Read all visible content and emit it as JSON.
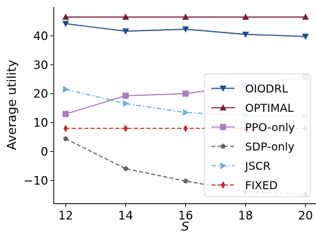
{
  "chart_data": {
    "type": "line",
    "title": "",
    "xlabel": "S",
    "ylabel": "Average utility",
    "x": [
      12,
      14,
      16,
      18,
      20
    ],
    "xlim": [
      11.6,
      20.35
    ],
    "ylim": [
      -18,
      50
    ],
    "xticks": [
      12,
      14,
      16,
      18,
      20
    ],
    "yticks": [
      -10,
      0,
      10,
      20,
      30,
      40
    ],
    "ytick_labels": [
      "−10",
      "0",
      "10",
      "20",
      "30",
      "40"
    ],
    "grid": false,
    "legend_position": "bottom-right",
    "series": [
      {
        "name": "OIODRL",
        "color": "#1f4e8c",
        "linestyle": "solid",
        "marker": "triangle-down",
        "values": [
          44.2,
          41.6,
          42.3,
          40.5,
          39.8
        ]
      },
      {
        "name": "OPTIMAL",
        "color": "#7b1a42",
        "linestyle": "solid",
        "marker": "triangle-up",
        "values": [
          46.5,
          46.5,
          46.5,
          46.5,
          46.5
        ]
      },
      {
        "name": "PPO-only",
        "color": "#a87dbf",
        "linestyle": "solid",
        "marker": "square",
        "values": [
          13.0,
          19.3,
          20.0,
          23.0,
          25.8
        ]
      },
      {
        "name": "SDP-only",
        "color": "#666666",
        "linestyle": "dashed",
        "marker": "pentagon",
        "values": [
          4.4,
          -5.9,
          -10.2,
          -13.8,
          -14.8
        ]
      },
      {
        "name": "JSCR",
        "color": "#6fb1d4",
        "linestyle": "dashdot",
        "marker": "triangle-right",
        "values": [
          21.5,
          16.6,
          13.5,
          12.5,
          12.2
        ]
      },
      {
        "name": "FIXED",
        "color": "#c8283a",
        "linestyle": "dashed",
        "marker": "diamond",
        "values": [
          8.0,
          8.0,
          8.0,
          8.0,
          8.0
        ]
      }
    ]
  }
}
